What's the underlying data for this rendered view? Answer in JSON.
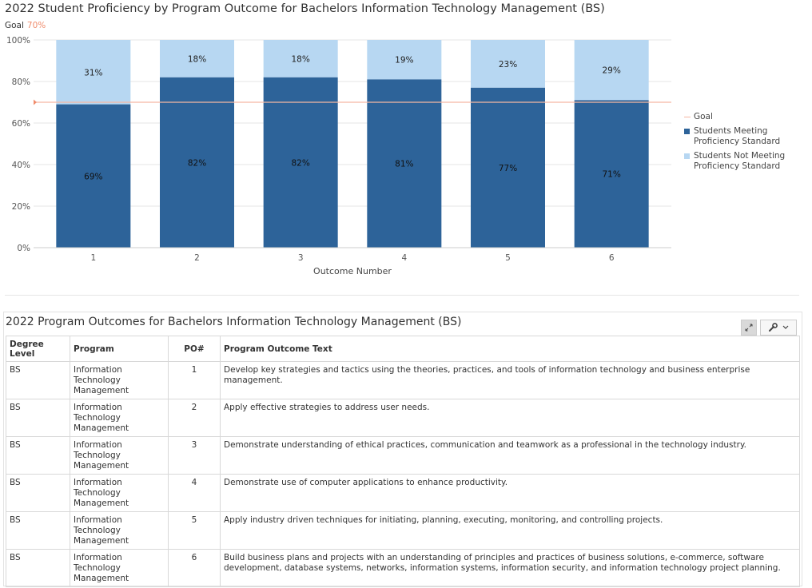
{
  "chart_title": "2022 Student Proficiency by Program Outcome for Bachelors Information Technology Management (BS)",
  "goal_label": "Goal",
  "goal_value_text": "70%",
  "chart_data": {
    "type": "bar",
    "stacked": true,
    "title": "2022 Student Proficiency by Program Outcome for Bachelors Information Technology Management (BS)",
    "xlabel": "Outcome Number",
    "ylabel": "",
    "ylim": [
      0,
      100
    ],
    "yticks": [
      "0%",
      "20%",
      "40%",
      "60%",
      "80%",
      "100%"
    ],
    "categories": [
      "1",
      "2",
      "3",
      "4",
      "5",
      "6"
    ],
    "goal": 70,
    "series": [
      {
        "name": "Students Meeting Proficiency Standard",
        "values": [
          69,
          82,
          82,
          81,
          77,
          71
        ],
        "labels": [
          "69%",
          "82%",
          "82%",
          "81%",
          "77%",
          "71%"
        ],
        "color": "#2d6399"
      },
      {
        "name": "Students Not Meeting Proficiency Standard",
        "values": [
          31,
          18,
          18,
          19,
          23,
          29
        ],
        "labels": [
          "31%",
          "18%",
          "18%",
          "19%",
          "23%",
          "29%"
        ],
        "color": "#b7d7f2"
      }
    ],
    "legend": {
      "position": "right",
      "items": [
        {
          "label": "Goal",
          "color": "#f5b7a3",
          "kind": "line"
        },
        {
          "label": "Students Meeting Proficiency Standard",
          "color": "#2d6399",
          "kind": "box"
        },
        {
          "label": "Students Not Meeting Proficiency Standard",
          "color": "#b7d7f2",
          "kind": "box"
        }
      ]
    },
    "grid": true
  },
  "table_panel": {
    "title": "2022 Program Outcomes for Bachelors Information Technology Management (BS)",
    "headers": [
      "Degree Level",
      "Program",
      "PO#",
      "Program Outcome Text"
    ],
    "rows": [
      {
        "degree": "BS",
        "program": "Information Technology Management",
        "po": "1",
        "text": "Develop key strategies and tactics using the theories, practices, and tools of information technology and business enterprise management."
      },
      {
        "degree": "BS",
        "program": "Information Technology Management",
        "po": "2",
        "text": "Apply effective strategies to address user needs."
      },
      {
        "degree": "BS",
        "program": "Information Technology Management",
        "po": "3",
        "text": "Demonstrate understanding of ethical practices, communication and teamwork as a professional in the technology industry."
      },
      {
        "degree": "BS",
        "program": "Information Technology Management",
        "po": "4",
        "text": "Demonstrate use of computer applications to enhance productivity."
      },
      {
        "degree": "BS",
        "program": "Information Technology Management",
        "po": "5",
        "text": "Apply industry driven techniques for initiating, planning, executing, monitoring, and controlling projects."
      },
      {
        "degree": "BS",
        "program": "Information Technology Management",
        "po": "6",
        "text": "Build business plans and projects with an understanding of principles and practices of business solutions, e-commerce, software development, database systems, networks, information systems, information security, and information technology project planning."
      }
    ],
    "tools": {
      "expand_icon": "expand-icon",
      "wrench_icon": "wrench-icon",
      "dropdown_icon": "chevron-down-icon"
    }
  }
}
